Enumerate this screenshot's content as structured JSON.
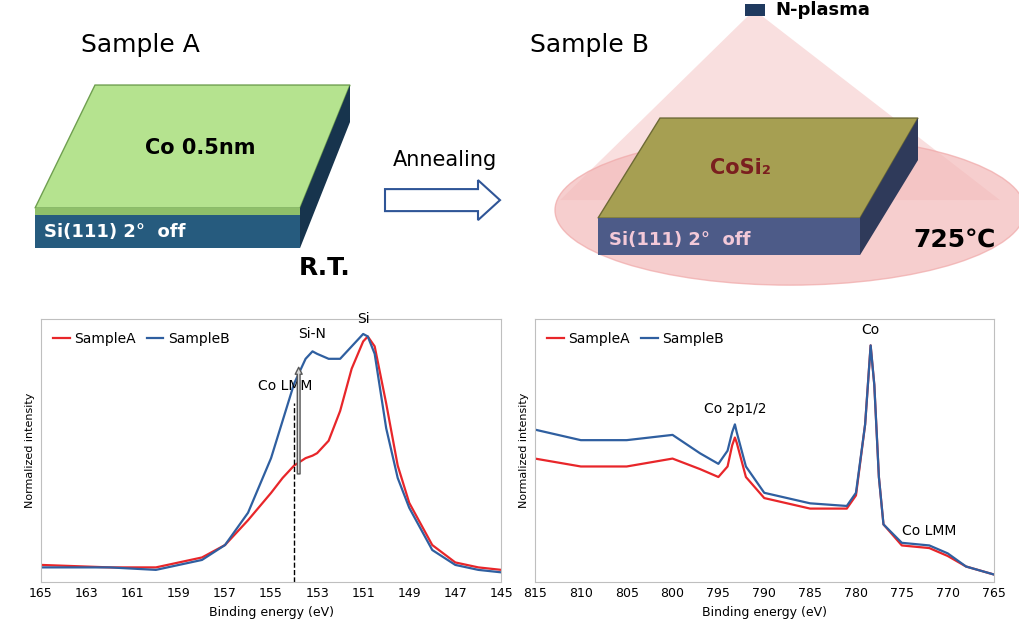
{
  "diagram": {
    "sample_a": {
      "title": "Sample A",
      "film": "Co 0.5nm",
      "substrate": "Si(111) 2°  off",
      "condition": "R.T."
    },
    "process": "Annealing",
    "sample_b": {
      "title": "Sample B",
      "film": "CoSi₂",
      "substrate": "Si(111) 2°  off",
      "condition": "725℃",
      "source": "N-plasma"
    }
  },
  "chart_data": [
    {
      "type": "line",
      "x_label": "Binding energy (eV)",
      "y_label": "Normalized intensity",
      "x": [
        165,
        162,
        160,
        158,
        157,
        156,
        155,
        154.5,
        154,
        153.5,
        153.2,
        153,
        152.5,
        152,
        151.5,
        151,
        150.8,
        150.5,
        150,
        149.5,
        149,
        148,
        147,
        146,
        145
      ],
      "series": [
        {
          "name": "SampleA",
          "color": "#e8262a",
          "values": [
            0.07,
            0.06,
            0.06,
            0.1,
            0.15,
            0.25,
            0.36,
            0.42,
            0.47,
            0.5,
            0.51,
            0.52,
            0.57,
            0.69,
            0.86,
            0.97,
            0.99,
            0.95,
            0.72,
            0.47,
            0.32,
            0.15,
            0.08,
            0.06,
            0.05
          ]
        },
        {
          "name": "SampleB",
          "color": "#2f5fa0",
          "values": [
            0.06,
            0.06,
            0.05,
            0.09,
            0.15,
            0.28,
            0.5,
            0.65,
            0.8,
            0.9,
            0.93,
            0.92,
            0.9,
            0.9,
            0.95,
            1.0,
            0.99,
            0.92,
            0.62,
            0.42,
            0.3,
            0.13,
            0.07,
            0.05,
            0.04
          ]
        }
      ],
      "xlim": [
        165,
        145
      ],
      "xticks": [
        165,
        163,
        161,
        159,
        157,
        155,
        153,
        151,
        149,
        147,
        145
      ],
      "ylim": [
        0,
        1.06
      ],
      "tick_labels": "x",
      "legend": "upper left",
      "annotations": [
        {
          "text": "Co LMM",
          "x": 154,
          "line_style": "dashed"
        },
        {
          "text": "Si-N",
          "x": 153.2,
          "line_style": "arrow"
        },
        {
          "text": "Si",
          "x": 151
        }
      ]
    },
    {
      "type": "line",
      "x_label": "Binding energy (eV)",
      "y_label": "Normalized intensity",
      "x": [
        815,
        810,
        805,
        800,
        797,
        795,
        794,
        793.5,
        793.2,
        793,
        792,
        790,
        785,
        781,
        780,
        779,
        778.4,
        778,
        777.5,
        777,
        775,
        772,
        770,
        768,
        765
      ],
      "series": [
        {
          "name": "SampleA",
          "color": "#e8262a",
          "values": [
            0.47,
            0.44,
            0.44,
            0.47,
            0.43,
            0.4,
            0.44,
            0.52,
            0.55,
            0.53,
            0.4,
            0.32,
            0.28,
            0.28,
            0.33,
            0.6,
            0.9,
            0.75,
            0.4,
            0.22,
            0.14,
            0.13,
            0.1,
            0.06,
            0.03
          ]
        },
        {
          "name": "SampleB",
          "color": "#2f5fa0",
          "values": [
            0.58,
            0.54,
            0.54,
            0.56,
            0.49,
            0.45,
            0.5,
            0.57,
            0.6,
            0.57,
            0.44,
            0.34,
            0.3,
            0.29,
            0.34,
            0.6,
            0.9,
            0.75,
            0.4,
            0.22,
            0.15,
            0.14,
            0.11,
            0.06,
            0.03
          ]
        }
      ],
      "xlim": [
        815,
        765
      ],
      "xticks": [
        815,
        810,
        805,
        800,
        795,
        790,
        785,
        780,
        775,
        770,
        765
      ],
      "ylim": [
        0,
        1.0
      ],
      "tick_labels": "x",
      "legend": "upper left",
      "annotations": [
        {
          "text": "Co 2p1/2",
          "x": 793.2
        },
        {
          "text": "Co",
          "x": 778.4
        },
        {
          "text": "Co LMM",
          "x": 772
        }
      ]
    }
  ]
}
